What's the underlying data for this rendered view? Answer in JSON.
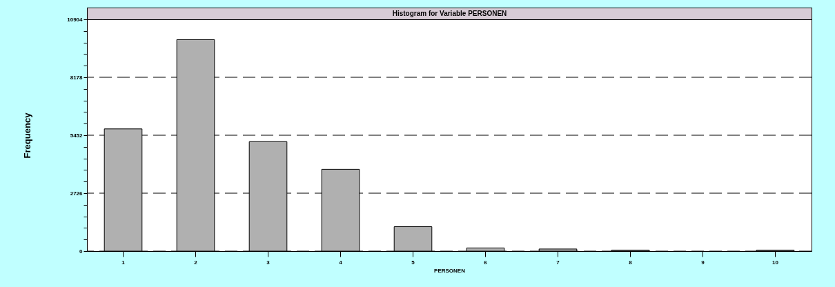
{
  "chart_data": {
    "type": "bar",
    "title": "Histogram for Variable PERSONEN",
    "xlabel": "PERSONEN",
    "ylabel": "Frequency",
    "categories": [
      "1",
      "2",
      "3",
      "4",
      "5",
      "6",
      "7",
      "8",
      "9",
      "10"
    ],
    "values": [
      5750,
      9950,
      5150,
      3850,
      1150,
      150,
      100,
      50,
      0,
      50
    ],
    "color": "#b0b0b0",
    "ylim": [
      0,
      10904
    ],
    "yticks": [
      0,
      {
        "value": 545.2,
        "label": null
      },
      {
        "value": 1090.4,
        "label": null
      },
      {
        "value": 1635.6,
        "label": null
      },
      {
        "value": 2180.8,
        "label": null
      },
      2726,
      {
        "value": 3271.2,
        "label": null
      },
      {
        "value": 3816.4,
        "label": null
      },
      {
        "value": 4361.6,
        "label": null
      },
      {
        "value": 4906.8,
        "label": null
      },
      5452,
      {
        "value": 5997.2,
        "label": null
      },
      {
        "value": 6542.4,
        "label": null
      },
      {
        "value": 7087.6,
        "label": null
      },
      {
        "value": 7632.8,
        "label": null
      },
      8178,
      {
        "value": 8723.2,
        "label": null
      },
      {
        "value": 9268.4,
        "label": null
      },
      {
        "value": 9813.6,
        "label": null
      },
      {
        "value": 10358.8,
        "label": null
      },
      10904
    ],
    "grid": "y"
  }
}
